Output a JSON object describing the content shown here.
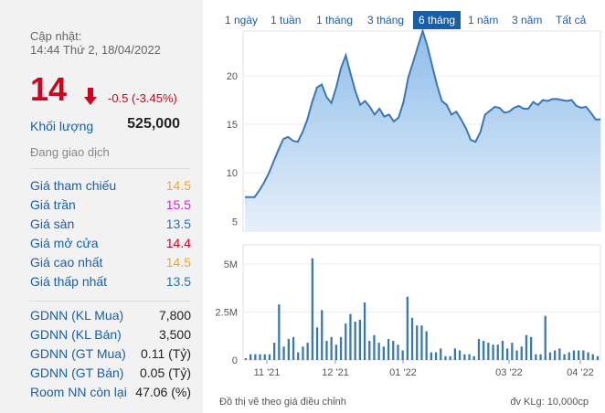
{
  "update": {
    "label": "Cập nhật:",
    "time": "14:44 Thứ 2, 18/04/2022"
  },
  "quote": {
    "price": "14",
    "change": "-0.5 (-3.45%)",
    "direction_icon": "arrow-down-icon",
    "volume_label": "Khối lượng",
    "volume_value": "525,000",
    "status": "Đang giao dịch"
  },
  "price_stats": [
    {
      "label": "Giá tham chiếu",
      "value": "14.5",
      "color": "#f5a623"
    },
    {
      "label": "Giá trần",
      "value": "15.5",
      "color": "#e020e0"
    },
    {
      "label": "Giá sàn",
      "value": "13.5",
      "color": "#1e73be"
    },
    {
      "label": "Giá mở cửa",
      "value": "14.4",
      "color": "#d0021b"
    },
    {
      "label": "Giá cao nhất",
      "value": "14.5",
      "color": "#f5a623"
    },
    {
      "label": "Giá thấp nhất",
      "value": "13.5",
      "color": "#1e73be"
    }
  ],
  "foreign_stats": [
    {
      "label": "GDNN (KL Mua)",
      "value": "7,800"
    },
    {
      "label": "GDNN (KL Bán)",
      "value": "3,500"
    },
    {
      "label": "GDNN (GT Mua)",
      "value": "0.11 (Tỷ)"
    },
    {
      "label": "GDNN (GT Bán)",
      "value": "0.05 (Tỷ)"
    },
    {
      "label": "Room NN còn lại",
      "value": "47.06 (%)"
    }
  ],
  "tabs": [
    {
      "label": "1 ngày",
      "active": false
    },
    {
      "label": "1 tuần",
      "active": false
    },
    {
      "label": "1 tháng",
      "active": false
    },
    {
      "label": "3 tháng",
      "active": false
    },
    {
      "label": "6 tháng",
      "active": true
    },
    {
      "label": "1 năm",
      "active": false
    },
    {
      "label": "3 năm",
      "active": false
    },
    {
      "label": "Tất cả",
      "active": false
    }
  ],
  "footer": {
    "left": "Đồ thị vẽ theo giá điều chỉnh",
    "right": "đv KLg: 10,000cp"
  },
  "colors": {
    "price_line": "#3a78b5",
    "area_top": "#8fbde9",
    "area_bottom": "#e6f0fa",
    "volume_bar": "#3a78b5",
    "up": "#d0021b"
  },
  "chart_data": [
    {
      "type": "area",
      "name": "price",
      "ylim": [
        4,
        24.6
      ],
      "y_ticks": [
        5,
        10,
        15,
        20
      ],
      "x_ticks": [
        "11 '21",
        "12 '21",
        "01 '22",
        "03 '22",
        "04 '22"
      ],
      "values": [
        7.5,
        7.5,
        7.5,
        8.2,
        9.0,
        10.0,
        11.2,
        12.4,
        13.5,
        13.7,
        13.3,
        13.2,
        14.2,
        15.5,
        17.3,
        18.8,
        19.1,
        17.8,
        17.2,
        18.8,
        20.8,
        22.1,
        20.2,
        18.4,
        17.0,
        17.4,
        16.8,
        16.0,
        16.6,
        15.8,
        16.0,
        15.3,
        15.7,
        17.3,
        19.8,
        21.4,
        23.0,
        24.6,
        23.0,
        21.0,
        19.0,
        17.4,
        17.0,
        16.0,
        16.3,
        15.5,
        14.6,
        13.4,
        13.2,
        14.2,
        16.0,
        16.4,
        16.8,
        16.7,
        16.2,
        16.3,
        16.7,
        16.9,
        16.6,
        16.6,
        17.3,
        17.0,
        17.5,
        17.4,
        17.6,
        17.6,
        17.5,
        17.4,
        17.5,
        16.9,
        16.7,
        16.8,
        16.2,
        15.5,
        15.5
      ],
      "ylabel": "",
      "xlabel": ""
    },
    {
      "type": "bar",
      "name": "volume",
      "ylim": [
        0,
        6000000
      ],
      "y_ticks": [
        "0",
        "2.5M",
        "5M"
      ],
      "values": [
        100000,
        300000,
        300000,
        300000,
        300000,
        300000,
        900000,
        2900000,
        700000,
        1100000,
        1200000,
        400000,
        700000,
        900000,
        5300000,
        1700000,
        2600000,
        1000000,
        1200000,
        800000,
        1200000,
        1900000,
        2400000,
        2000000,
        2100000,
        3000000,
        1000000,
        1300000,
        900000,
        700000,
        1100000,
        1000000,
        800000,
        500000,
        3300000,
        2200000,
        1800000,
        1800000,
        1500000,
        400000,
        400000,
        600000,
        200000,
        200000,
        600000,
        500000,
        300000,
        300000,
        200000,
        1100000,
        1000000,
        900000,
        800000,
        800000,
        1000000,
        600000,
        900000,
        500000,
        700000,
        1300000,
        1200000,
        300000,
        300000,
        2300000,
        400000,
        500000,
        600000,
        300000,
        400000,
        500000,
        500000,
        500000,
        400000,
        300000,
        200000
      ],
      "ylabel": "",
      "xlabel": ""
    }
  ]
}
